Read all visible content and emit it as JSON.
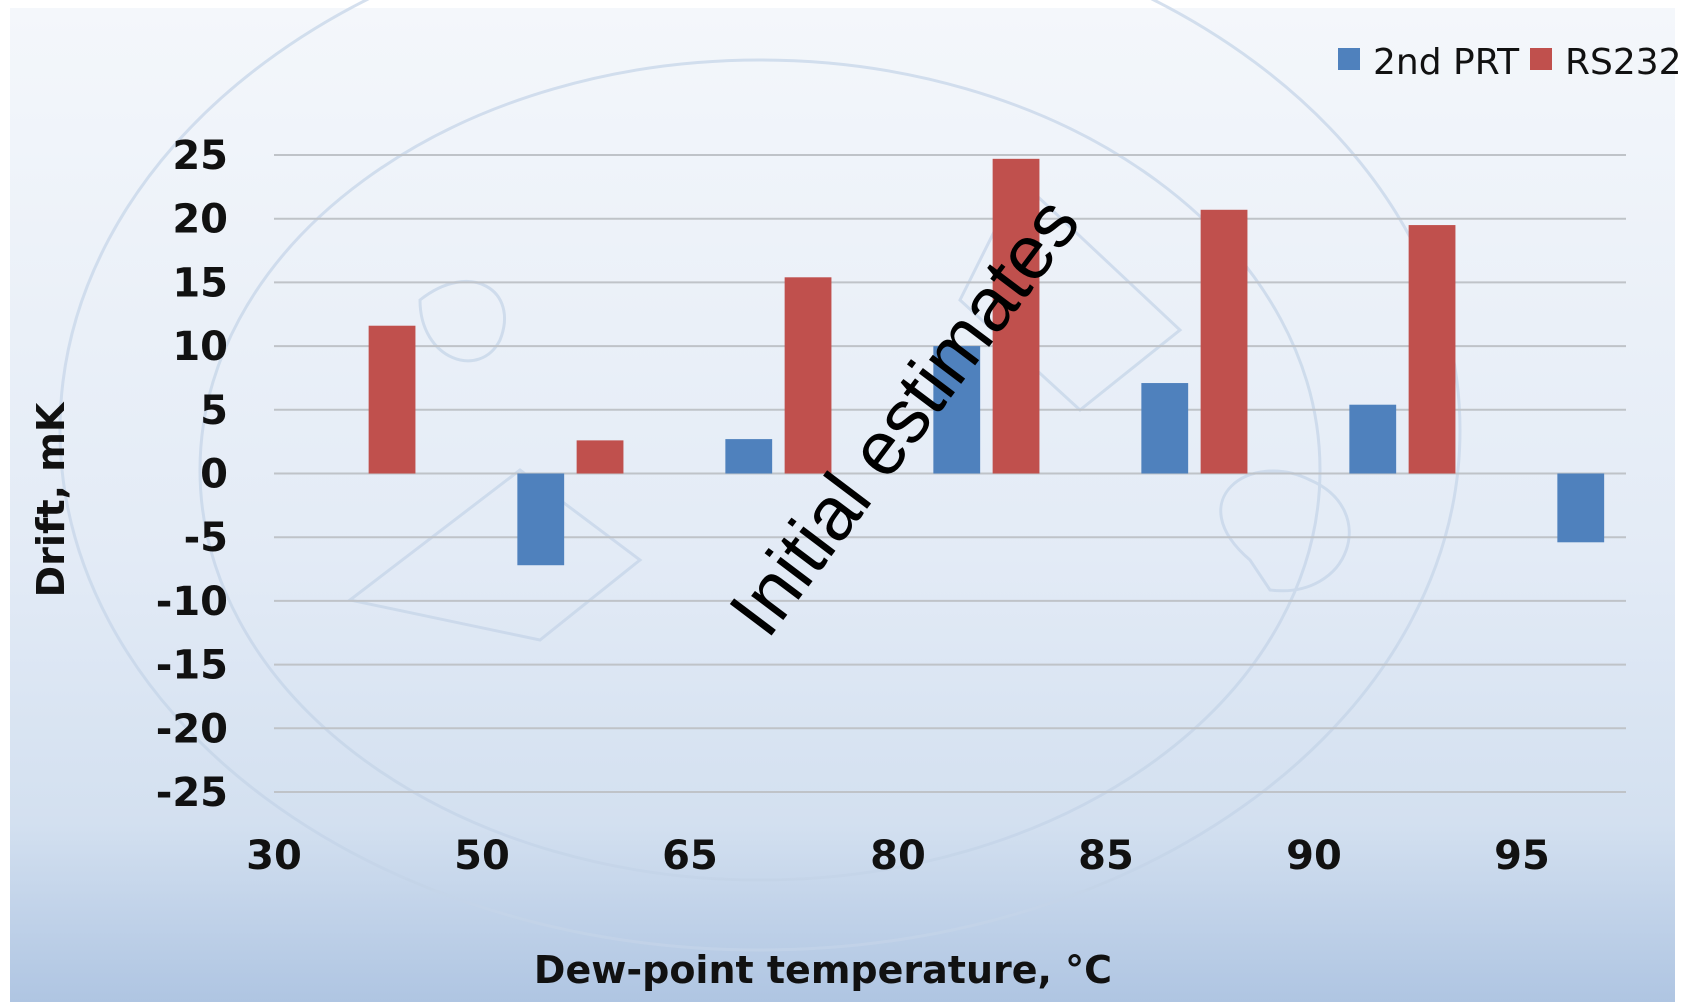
{
  "chart_data": {
    "type": "bar",
    "categories": [
      "30",
      "50",
      "65",
      "80",
      "85",
      "90",
      "95"
    ],
    "series": [
      {
        "name": "2nd PRT",
        "color": "#4F81BD",
        "values": [
          null,
          -7.2,
          2.7,
          10,
          7.1,
          5.4,
          -5.4
        ]
      },
      {
        "name": "RS232",
        "color": "#C0504D",
        "values": [
          11.6,
          2.6,
          15.4,
          24.7,
          20.7,
          19.5,
          null
        ]
      }
    ],
    "xlabel": "Dew-point temperature, °C",
    "ylabel": "Drift, mK",
    "ylim": [
      -25,
      25
    ],
    "yticks": [
      "25",
      "20",
      "15",
      "10",
      "5",
      "0",
      "-5",
      "-10",
      "-15",
      "-20",
      "-25"
    ],
    "grid": true,
    "legend": "top-right",
    "annotation": "Initial estimates",
    "background_colors": {
      "top": "#F4F7FB",
      "middle": "#D9E5F3",
      "bottom": "#AEC4E1"
    }
  }
}
